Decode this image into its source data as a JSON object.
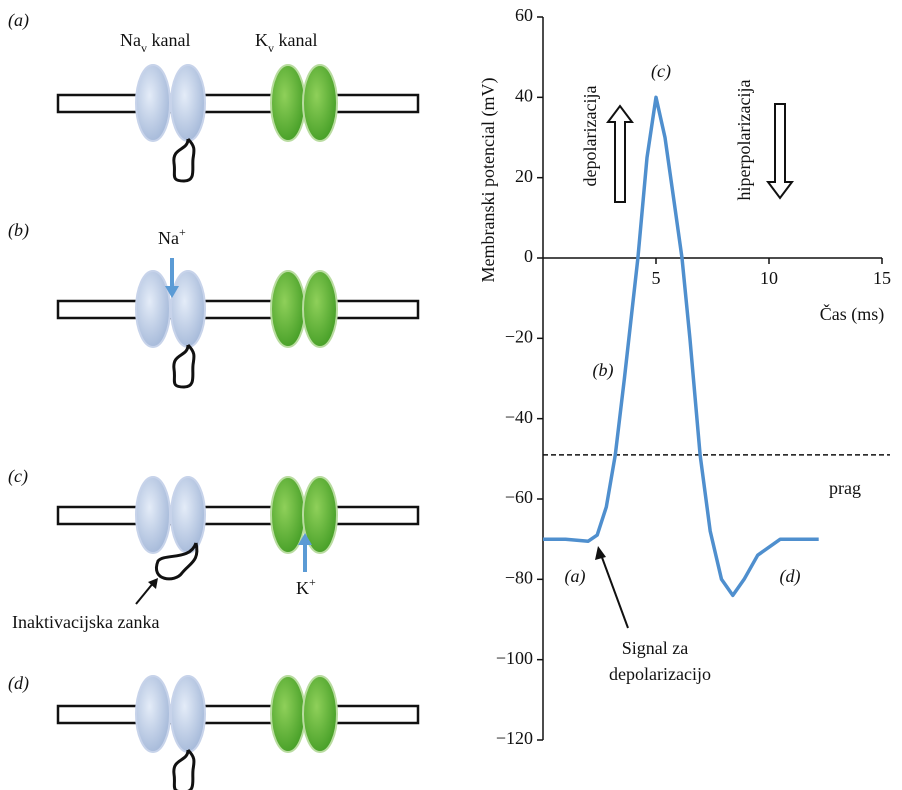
{
  "diagram": {
    "panels": [
      {
        "label": "(a)",
        "na": {
          "base": "Na",
          "sub": "v",
          "rest": " kanal"
        },
        "k": {
          "base": "K",
          "sub": "v",
          "rest": " kanal"
        }
      },
      {
        "label": "(b)",
        "ion": {
          "base": "Na",
          "sup": "+"
        }
      },
      {
        "label": "(c)",
        "ion": {
          "base": "K",
          "sup": "+"
        },
        "note": "Inaktivacijska  zanka"
      },
      {
        "label": "(d)"
      }
    ]
  },
  "chart_data": {
    "type": "line",
    "xlabel": "Čas (ms)",
    "ylabel": "Membranski potencial (mV)",
    "xlim": [
      0,
      15
    ],
    "xticks": [
      5,
      10,
      15
    ],
    "ylim": [
      -120,
      60
    ],
    "yticks": [
      {
        "value": -120,
        "label": "−120"
      },
      {
        "value": -100,
        "label": "−100"
      },
      {
        "value": -80,
        "label": "−80"
      },
      {
        "value": -60,
        "label": "−60"
      },
      {
        "value": -40,
        "label": "−40"
      },
      {
        "value": -20,
        "label": "−20"
      },
      0,
      20,
      40,
      60
    ],
    "series": [
      {
        "color": "#4f8fce",
        "x": [
          0,
          1,
          2,
          2.4,
          2.8,
          3.2,
          3.6,
          4.2,
          4.6,
          5,
          5.4,
          5.8,
          6.15,
          6.5,
          6.95,
          7.4,
          7.9,
          8.4,
          8.9,
          9.5,
          10.5,
          12.2
        ],
        "values": [
          -70,
          -70,
          -70.5,
          -69,
          -62,
          -49,
          -30,
          0,
          25,
          40,
          30,
          14,
          0,
          -20,
          -49,
          -68,
          -80,
          -84,
          -80,
          -74,
          -70,
          -70
        ]
      }
    ],
    "threshold": {
      "value": -49,
      "label": "prag"
    },
    "annotations": {
      "a": "(a)",
      "b": "(b)",
      "c": "(c)",
      "d": "(d)",
      "depol": "depolarizacija",
      "hiper": "hiperpolarizacija",
      "signal": [
        "Signal za",
        "depolarizacijo"
      ]
    }
  }
}
